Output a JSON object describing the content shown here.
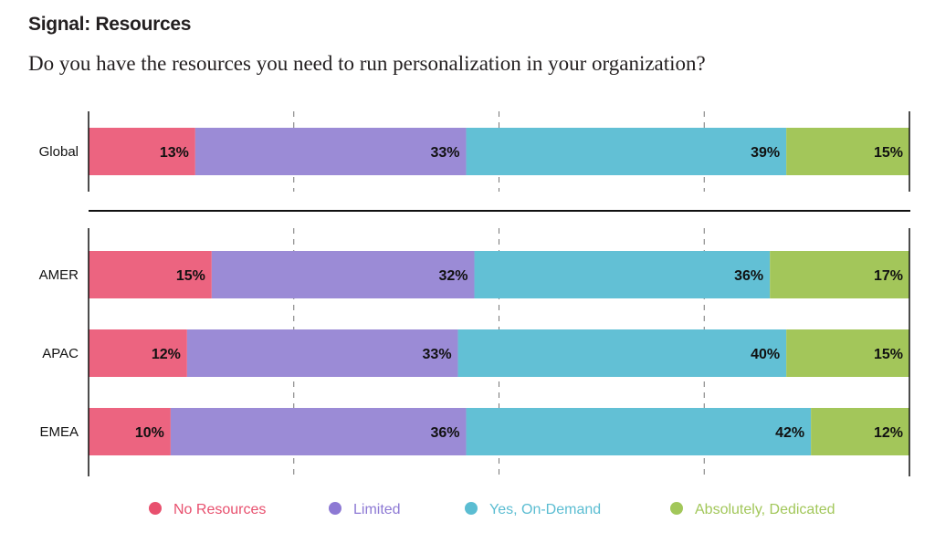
{
  "chart_data": {
    "type": "bar",
    "orientation": "horizontal",
    "stacked": true,
    "title": "Signal: Resources",
    "subtitle": "Do you have the resources you need to run personalization in your organization?",
    "xlim": [
      0,
      100
    ],
    "grid": true,
    "legend_position": "bottom",
    "groups": [
      {
        "categories": [
          "Global"
        ]
      },
      {
        "categories": [
          "AMER",
          "APAC",
          "EMEA"
        ]
      }
    ],
    "categories": [
      "Global",
      "AMER",
      "APAC",
      "EMEA"
    ],
    "series": [
      {
        "name": "No Resources",
        "color": "#ec6480",
        "legend_color": "#e8506e",
        "values": [
          13,
          15,
          12,
          10
        ]
      },
      {
        "name": "Limited",
        "color": "#9b8bd6",
        "legend_color": "#8d79d4",
        "values": [
          33,
          32,
          33,
          36
        ]
      },
      {
        "name": "Yes, On-Demand",
        "color": "#62c0d5",
        "legend_color": "#5bbdd2",
        "values": [
          39,
          36,
          40,
          42
        ]
      },
      {
        "name": "Absolutely, Dedicated",
        "color": "#a3c65a",
        "legend_color": "#a2c75a",
        "values": [
          15,
          17,
          15,
          12
        ]
      }
    ],
    "value_suffix": "%"
  }
}
